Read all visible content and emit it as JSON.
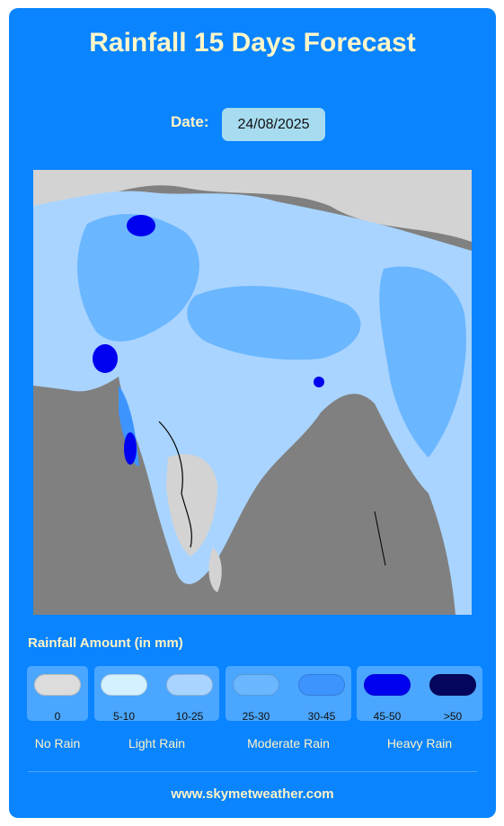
{
  "header": {
    "title": "Rainfall 15 Days Forecast"
  },
  "date": {
    "label": "Date:",
    "value": "24/08/2025"
  },
  "legend": {
    "title": "Rainfall Amount (in mm)",
    "swatches": [
      {
        "label": "0",
        "color": "#dcdcdc"
      },
      {
        "label": "5-10",
        "color": "#d3f1ff"
      },
      {
        "label": "10-25",
        "color": "#a9d4ff"
      },
      {
        "label": "25-30",
        "color": "#6ab6ff"
      },
      {
        "label": "30-45",
        "color": "#3d94ff"
      },
      {
        "label": "45-50",
        "color": "#0000f0"
      },
      {
        "label": ">50",
        "color": "#04065e"
      }
    ],
    "categories": [
      "No Rain",
      "Light Rain",
      "Moderate Rain",
      "Heavy Rain"
    ]
  },
  "footer": {
    "text": "www.skymetweather.com"
  }
}
